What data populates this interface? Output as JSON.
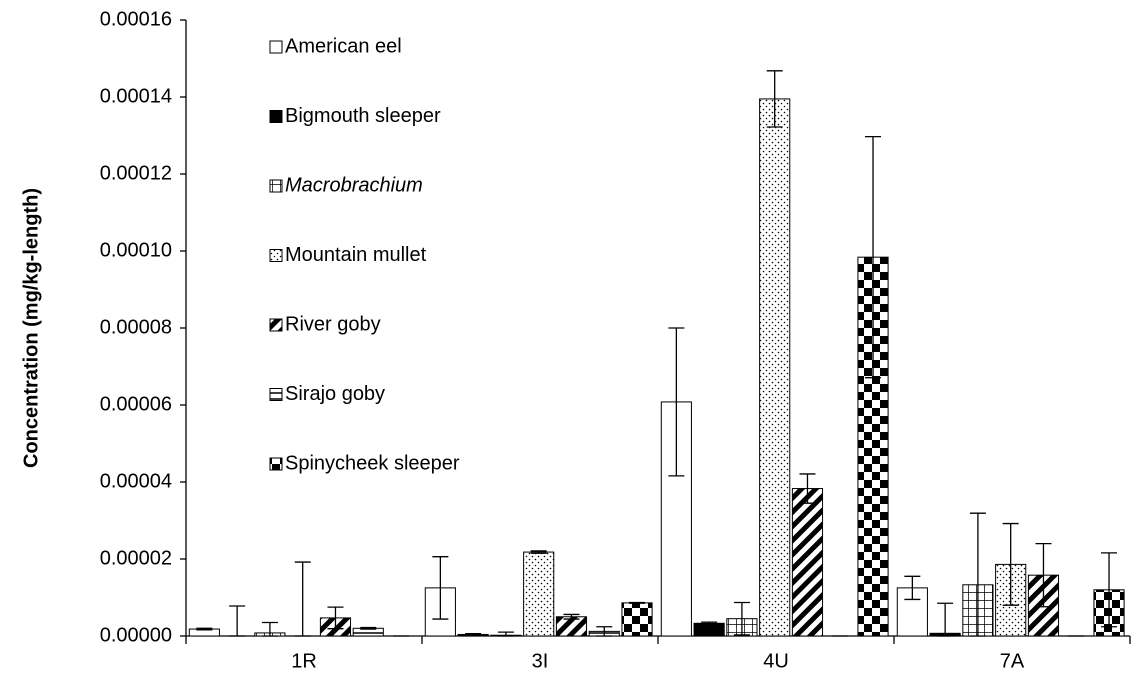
{
  "chart_data": {
    "type": "bar",
    "y_label": "Concentration (mg/kg-length)",
    "categories": [
      "1R",
      "3I",
      "4U",
      "7A"
    ],
    "ylim": [
      0,
      0.00016
    ],
    "yticks": [
      {
        "value": 0,
        "label": "0.00000"
      },
      {
        "value": 2e-05,
        "label": "0.00002"
      },
      {
        "value": 4e-05,
        "label": "0.00004"
      },
      {
        "value": 6e-05,
        "label": "0.00006"
      },
      {
        "value": 8e-05,
        "label": "0.00008"
      },
      {
        "value": 0.0001,
        "label": "0.00010"
      },
      {
        "value": 0.00012,
        "label": "0.00012"
      },
      {
        "value": 0.00014,
        "label": "0.00014"
      },
      {
        "value": 0.00016,
        "label": "0.00016"
      }
    ],
    "grid": false,
    "legend": "upper left",
    "series": [
      {
        "name": "American eel",
        "pattern": "white",
        "color": "#000000",
        "values": [
          1.8e-06,
          1.25e-05,
          6.08e-05,
          1.25e-05
        ],
        "errors": [
          2e-07,
          8.1e-06,
          1.92e-05,
          3e-06
        ]
      },
      {
        "name": "Bigmouth sleeper",
        "pattern": "solid",
        "color": "#000000",
        "values": [
          0,
          4e-07,
          3.3e-06,
          7e-07
        ],
        "errors": [
          7.8e-06,
          2e-07,
          3e-07,
          7.8e-06
        ]
      },
      {
        "name": "Macrobrachium",
        "pattern": "grid",
        "color": "#000000",
        "italic": true,
        "values": [
          8e-07,
          2e-07,
          4.5e-06,
          1.33e-05
        ],
        "errors": [
          2.7e-06,
          8e-07,
          4.2e-06,
          1.86e-05
        ]
      },
      {
        "name": "Mountain mullet",
        "pattern": "dots",
        "color": "#000000",
        "values": [
          0,
          2.18e-05,
          0.0001395,
          1.86e-05
        ],
        "errors": [
          1.92e-05,
          3e-07,
          7.3e-06,
          1.06e-05
        ]
      },
      {
        "name": "River goby",
        "pattern": "diagonal",
        "color": "#000000",
        "values": [
          4.7e-06,
          5e-06,
          3.83e-05,
          1.58e-05
        ],
        "errors": [
          2.8e-06,
          6e-07,
          3.8e-06,
          8.2e-06
        ]
      },
      {
        "name": "Sirajo goby",
        "pattern": "horizontal",
        "color": "#000000",
        "values": [
          2e-06,
          1.2e-06,
          0,
          0
        ],
        "errors": [
          2e-07,
          1.2e-06,
          0,
          0
        ]
      },
      {
        "name": "Spinycheek sleeper",
        "pattern": "checker",
        "color": "#000000",
        "values": [
          0,
          8.6e-06,
          9.84e-05,
          1.2e-05
        ],
        "errors": [
          0,
          1e-07,
          3.13e-05,
          9.6e-06
        ]
      }
    ]
  }
}
